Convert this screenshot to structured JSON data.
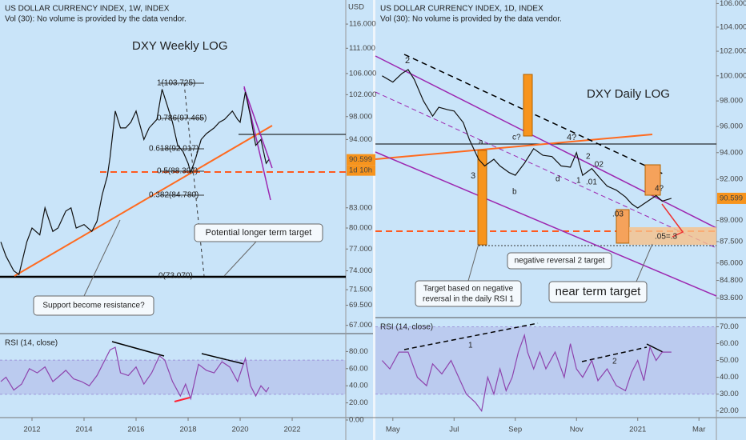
{
  "chart_data": [
    {
      "type": "line",
      "title": "US DOLLAR CURRENCY INDEX, 1W, INDEX",
      "subtitle": "Vol (30): No volume is provided by the data vendor.",
      "currency": "USD",
      "log_scale": true,
      "color": "#111111",
      "last_price": 90.599,
      "countdown": "1d 10h",
      "annotations": [
        "DXY Weekly  LOG",
        "1(103.725)",
        "0.786(97.465)",
        "0.618(92.017)",
        "0.5(88.397)",
        "0.382(84.780)",
        "0(73.070)",
        "Potential longer term target",
        "Support  become resistance?"
      ],
      "x": [
        2010.8,
        2011.0,
        2011.3,
        2011.5,
        2011.8,
        2012.0,
        2012.3,
        2012.5,
        2012.8,
        2013.0,
        2013.3,
        2013.5,
        2013.7,
        2014.0,
        2014.3,
        2014.5,
        2014.7,
        2014.9,
        2015.0,
        2015.2,
        2015.4,
        2015.6,
        2015.8,
        2016.0,
        2016.3,
        2016.5,
        2016.8,
        2017.0,
        2017.2,
        2017.4,
        2017.6,
        2017.8,
        2018.0,
        2018.1,
        2018.3,
        2018.5,
        2018.7,
        2019.0,
        2019.2,
        2019.4,
        2019.7,
        2019.9,
        2020.0,
        2020.2,
        2020.4,
        2020.6,
        2020.8,
        2021.0,
        2021.1
      ],
      "values": [
        78,
        76,
        74,
        73.5,
        78,
        80,
        79,
        83,
        79.5,
        80,
        82.5,
        83,
        80,
        80.5,
        79.5,
        81,
        85,
        88,
        91,
        99,
        96,
        96,
        97,
        99,
        94,
        96,
        97.5,
        103,
        100,
        97,
        93,
        92,
        90,
        88.5,
        91,
        94,
        95,
        96,
        97,
        97.5,
        99,
        97.5,
        97,
        102.5,
        98,
        93,
        94,
        90,
        90.6
      ],
      "xlim": [
        2010.77,
        2024.06
      ],
      "ylim": [
        66.0,
        121.2
      ],
      "yticks": [
        {
          "value": 116,
          "label": "116.000"
        },
        {
          "value": 111,
          "label": "111.000"
        },
        {
          "value": 106,
          "label": "106.000"
        },
        {
          "value": 102,
          "label": "102.000"
        },
        {
          "value": 98,
          "label": "98.000"
        },
        {
          "value": 94,
          "label": "94.000"
        },
        {
          "value": 83,
          "label": "83.000"
        },
        {
          "value": 80,
          "label": "80.000"
        },
        {
          "value": 77,
          "label": "77.000"
        },
        {
          "value": 74,
          "label": "74.000"
        },
        {
          "value": 71.5,
          "label": "71.500"
        },
        {
          "value": 69.5,
          "label": "69.500"
        },
        {
          "value": 67,
          "label": "67.000"
        }
      ]
    },
    {
      "type": "line",
      "title": "RSI (14, close)",
      "color": "#8e44ad",
      "band": [
        30,
        70
      ],
      "x": [
        2010.8,
        2011.0,
        2011.3,
        2011.6,
        2011.9,
        2012.2,
        2012.5,
        2012.8,
        2013.0,
        2013.3,
        2013.6,
        2013.9,
        2014.2,
        2014.5,
        2014.8,
        2015.0,
        2015.2,
        2015.4,
        2015.7,
        2016.0,
        2016.3,
        2016.6,
        2016.9,
        2017.1,
        2017.4,
        2017.7,
        2017.9,
        2018.1,
        2018.4,
        2018.7,
        2019.0,
        2019.3,
        2019.6,
        2019.9,
        2020.2,
        2020.4,
        2020.6,
        2020.8,
        2021.0,
        2021.1
      ],
      "values": [
        45,
        50,
        35,
        42,
        60,
        55,
        62,
        45,
        50,
        58,
        48,
        45,
        40,
        52,
        70,
        82,
        85,
        55,
        52,
        62,
        42,
        55,
        75,
        70,
        45,
        28,
        42,
        25,
        65,
        58,
        55,
        68,
        62,
        45,
        72,
        40,
        28,
        40,
        33,
        38
      ],
      "xlim": [
        2010.77,
        2024.06
      ],
      "ylim": [
        0,
        100
      ],
      "yticks": [
        {
          "value": 80,
          "label": "80.00"
        },
        {
          "value": 60,
          "label": "60.00"
        },
        {
          "value": 40,
          "label": "40.00"
        },
        {
          "value": 20,
          "label": "20.00"
        },
        {
          "value": 0,
          "label": "0.00"
        }
      ],
      "xticks": [
        2012,
        2014,
        2016,
        2018,
        2020,
        2022
      ]
    },
    {
      "type": "line",
      "title": "US DOLLAR CURRENCY INDEX, 1D, INDEX",
      "subtitle": "Vol (30): No volume is provided by the data vendor.",
      "log_scale": true,
      "color": "#111111",
      "last_price": 90.599,
      "annotations": [
        "DXY Daily LOG",
        "2",
        "3",
        "c?",
        "4?",
        "a",
        "b",
        "d",
        "1",
        ".01",
        "2",
        ".02",
        ".03",
        "4?",
        ".05=.3",
        "negative reversal 2 target",
        "Target based on negative",
        "reversal in the daily RSI 1",
        "near term target"
      ],
      "x": [
        3.65,
        4.0,
        4.3,
        4.5,
        4.7,
        5.0,
        5.3,
        5.5,
        5.8,
        6.0,
        6.3,
        6.5,
        6.8,
        7.0,
        7.3,
        7.5,
        7.8,
        8.0,
        8.3,
        8.6,
        8.9,
        9.2,
        9.5,
        9.8,
        10.0,
        10.2,
        10.5,
        10.8,
        11.0,
        11.3,
        11.6,
        11.8,
        12.0,
        12.2,
        12.4,
        12.6,
        12.8,
        13.1
      ],
      "values": [
        100,
        99.5,
        100.2,
        100.5,
        99.7,
        98,
        96.8,
        97.5,
        97.3,
        97.2,
        96.3,
        95,
        93.5,
        93,
        93.5,
        93,
        92.5,
        92.3,
        93.2,
        94.3,
        93.8,
        93.7,
        93,
        92.9,
        94,
        92.3,
        92.8,
        92,
        91.5,
        91.2,
        90.7,
        90.2,
        89.9,
        90.2,
        90.5,
        90.8,
        90.4,
        90.6
      ],
      "xlim": [
        3.43,
        14.57
      ],
      "ylim": [
        82.3,
        106.3
      ],
      "yticks": [
        {
          "value": 106,
          "label": "106.000"
        },
        {
          "value": 104,
          "label": "104.000"
        },
        {
          "value": 102,
          "label": "102.000"
        },
        {
          "value": 100,
          "label": "100.000"
        },
        {
          "value": 98,
          "label": "98.000"
        },
        {
          "value": 96,
          "label": "96.000"
        },
        {
          "value": 94,
          "label": "94.000"
        },
        {
          "value": 92,
          "label": "92.000"
        },
        {
          "value": 89,
          "label": "89.000"
        },
        {
          "value": 87.5,
          "label": "87.500"
        },
        {
          "value": 86,
          "label": "86.000"
        },
        {
          "value": 84.8,
          "label": "84.800"
        },
        {
          "value": 83.6,
          "label": "83.600"
        }
      ]
    },
    {
      "type": "line",
      "title": "RSI (14, close)",
      "color": "#8e44ad",
      "band": [
        30,
        70
      ],
      "annotations": [
        "1",
        "2"
      ],
      "x": [
        3.65,
        3.9,
        4.2,
        4.5,
        4.8,
        5.1,
        5.3,
        5.6,
        5.9,
        6.2,
        6.4,
        6.7,
        6.9,
        7.1,
        7.3,
        7.5,
        7.7,
        7.9,
        8.1,
        8.3,
        8.4,
        8.6,
        8.8,
        9.0,
        9.3,
        9.6,
        9.8,
        10.0,
        10.2,
        10.5,
        10.7,
        11.0,
        11.3,
        11.6,
        11.8,
        12.0,
        12.2,
        12.4,
        12.6,
        12.8,
        13.1
      ],
      "values": [
        50,
        45,
        55,
        55,
        40,
        35,
        48,
        42,
        50,
        38,
        30,
        25,
        20,
        40,
        30,
        45,
        32,
        40,
        55,
        65,
        55,
        45,
        55,
        45,
        55,
        40,
        60,
        45,
        40,
        50,
        38,
        45,
        35,
        32,
        43,
        50,
        38,
        58,
        50,
        55,
        55
      ],
      "xlim": [
        3.43,
        14.57
      ],
      "ylim": [
        17,
        75
      ],
      "yticks": [
        {
          "value": 70,
          "label": "70.00"
        },
        {
          "value": 60,
          "label": "60.00"
        },
        {
          "value": 50,
          "label": "50.00"
        },
        {
          "value": 40,
          "label": "40.00"
        },
        {
          "value": 30,
          "label": "30.00"
        },
        {
          "value": 20,
          "label": "20.00"
        }
      ],
      "xticks": [
        {
          "value": 4,
          "label": "May"
        },
        {
          "value": 6,
          "label": "Jul"
        },
        {
          "value": 8,
          "label": "Sep"
        },
        {
          "value": 10,
          "label": "Nov"
        },
        {
          "value": 12,
          "label": "2021"
        },
        {
          "value": 14,
          "label": "Mar"
        }
      ]
    }
  ]
}
